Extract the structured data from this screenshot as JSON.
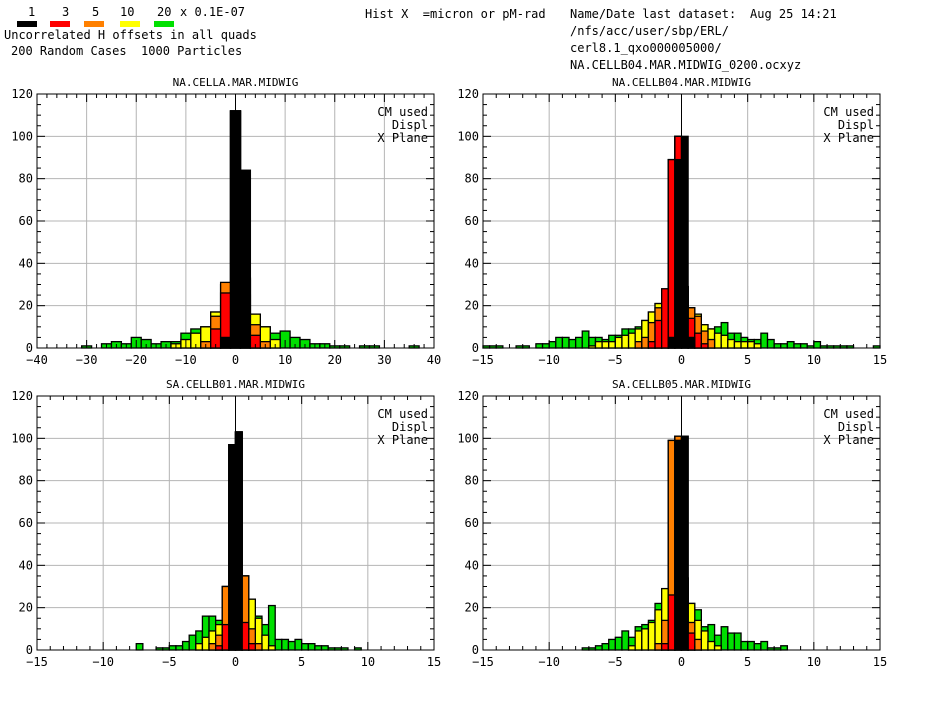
{
  "legend": {
    "levels": [
      {
        "label": "1",
        "color": "#000000"
      },
      {
        "label": "3",
        "color": "#ff0000"
      },
      {
        "label": "5",
        "color": "#ff8000"
      },
      {
        "label": "10",
        "color": "#ffff00"
      },
      {
        "label": "20",
        "color": "#00e000"
      }
    ],
    "unit": "x 0.1E-07"
  },
  "header": {
    "line1": "Uncorrelated H offsets in all quads",
    "line2": "200 Random Cases  1000 Particles",
    "hist_label": "Hist X  =micron or pM-rad",
    "dataset_label": "Name/Date last dataset:",
    "dataset_date": "Aug 25 14:21",
    "path1": "/nfs/acc/user/sbp/ERL/",
    "path2": "cerl8.1_qxo000005000/",
    "path3": "NA.CELLB04.MAR.MIDWIG_0200.ocxyz"
  },
  "chart_data": [
    {
      "type": "bar",
      "title": "NA.CELLA.MAR.MIDWIG",
      "annotations": [
        "CM used",
        "Displ",
        "X Plane"
      ],
      "xlim": [
        -40,
        40
      ],
      "ylim": [
        0,
        120
      ],
      "xticks": [
        -40,
        -30,
        -20,
        -10,
        0,
        10,
        20,
        30,
        40
      ],
      "yticks": [
        0,
        20,
        40,
        60,
        80,
        100,
        120
      ],
      "bin_width": 2,
      "series": [
        {
          "color": "#00e000",
          "x": [
            -30,
            -28,
            -26,
            -24,
            -22,
            -20,
            -18,
            -16,
            -14,
            -12,
            -10,
            -8,
            -6,
            -4,
            -2,
            0,
            2,
            4,
            6,
            8,
            10,
            12,
            14,
            16,
            18,
            20,
            22,
            24,
            26,
            28,
            30,
            32,
            34,
            36
          ],
          "values": [
            1,
            0,
            2,
            3,
            2,
            5,
            4,
            2,
            3,
            3,
            7,
            9,
            10,
            17,
            30,
            112,
            33,
            16,
            10,
            7,
            8,
            5,
            4,
            2,
            2,
            1,
            1,
            0,
            1,
            1,
            0,
            0,
            0,
            1
          ]
        },
        {
          "color": "#ffff00",
          "x": [
            -12,
            -10,
            -8,
            -6,
            -4,
            -2,
            0,
            2,
            4,
            6,
            8
          ],
          "values": [
            2,
            4,
            7,
            10,
            17,
            30,
            112,
            33,
            16,
            10,
            4
          ]
        },
        {
          "color": "#ff8000",
          "x": [
            -6,
            -4,
            -2,
            0,
            2,
            4,
            6
          ],
          "values": [
            3,
            15,
            31,
            112,
            32,
            11,
            3
          ]
        },
        {
          "color": "#ff0000",
          "x": [
            -4,
            -2,
            0,
            2,
            4
          ],
          "values": [
            9,
            26,
            112,
            25,
            6
          ]
        },
        {
          "color": "#000000",
          "x": [
            -2,
            0,
            2
          ],
          "values": [
            5,
            112,
            84
          ]
        }
      ]
    },
    {
      "type": "bar",
      "title": "NA.CELLB04.MAR.MIDWIG",
      "annotations": [
        "CM used",
        "Displ",
        "X Plane"
      ],
      "xlim": [
        -15,
        15
      ],
      "ylim": [
        0,
        120
      ],
      "xticks": [
        -15,
        -10,
        -5,
        0,
        5,
        10,
        15
      ],
      "yticks": [
        0,
        20,
        40,
        60,
        80,
        100,
        120
      ],
      "bin_width": 0.5,
      "series": [
        {
          "color": "#00e000",
          "x": [
            -14.75,
            -14.25,
            -13.75,
            -12.75,
            -12.25,
            -11.75,
            -11.25,
            -10.75,
            -10.25,
            -9.75,
            -9.25,
            -8.75,
            -8.25,
            -7.75,
            -7.25,
            -6.75,
            -6.25,
            -5.75,
            -5.25,
            -4.75,
            -4.25,
            -3.75,
            -3.25,
            -2.75,
            -2.25,
            -1.75,
            -1.25,
            -0.75,
            -0.25,
            0.25,
            0.75,
            1.25,
            1.75,
            2.25,
            2.75,
            3.25,
            3.75,
            4.25,
            4.75,
            5.25,
            5.75,
            6.25,
            6.75,
            7.25,
            7.75,
            8.25,
            8.75,
            9.25,
            9.75,
            10.25,
            10.75,
            11.25,
            11.75,
            12.25,
            12.75,
            14.75
          ],
          "values": [
            1,
            1,
            1,
            0,
            1,
            1,
            0,
            2,
            2,
            3,
            5,
            5,
            4,
            5,
            8,
            5,
            5,
            4,
            6,
            6,
            9,
            9,
            10,
            13,
            17,
            21,
            27,
            89,
            100,
            29,
            19,
            16,
            11,
            9,
            10,
            12,
            7,
            7,
            5,
            4,
            4,
            7,
            4,
            2,
            2,
            3,
            2,
            2,
            1,
            3,
            1,
            1,
            1,
            1,
            1,
            1
          ]
        },
        {
          "color": "#ffff00",
          "x": [
            -6.75,
            -6.25,
            -5.75,
            -5.25,
            -4.75,
            -4.25,
            -3.75,
            -3.25,
            -2.75,
            -2.25,
            -1.75,
            -1.25,
            -0.75,
            -0.25,
            0.25,
            0.75,
            1.25,
            1.75,
            2.25,
            2.75,
            3.25,
            3.75,
            4.25,
            4.75,
            5.25,
            5.75
          ],
          "values": [
            1,
            3,
            3,
            3,
            5,
            6,
            7,
            9,
            13,
            17,
            21,
            27,
            89,
            100,
            29,
            19,
            16,
            11,
            9,
            7,
            6,
            4,
            3,
            3,
            3,
            2
          ]
        },
        {
          "color": "#ff8000",
          "x": [
            -3.25,
            -2.75,
            -2.25,
            -1.75,
            -1.25,
            -0.75,
            -0.25,
            0.25,
            0.75,
            1.25,
            1.75,
            2.25
          ],
          "values": [
            3,
            5,
            12,
            19,
            26,
            89,
            100,
            29,
            19,
            15,
            8,
            4
          ]
        },
        {
          "color": "#ff0000",
          "x": [
            -2.25,
            -1.75,
            -1.25,
            -0.75,
            -0.25,
            0.25,
            0.75,
            1.25,
            1.75
          ],
          "values": [
            3,
            13,
            28,
            89,
            100,
            29,
            14,
            7,
            2
          ]
        },
        {
          "color": "#000000",
          "x": [
            -0.75,
            -0.25,
            0.25,
            0.75
          ],
          "values": [
            5,
            89,
            100,
            5
          ]
        }
      ]
    },
    {
      "type": "bar",
      "title": "SA.CELLB01.MAR.MIDWIG",
      "annotations": [
        "CM used",
        "Displ",
        "X Plane"
      ],
      "xlim": [
        -15,
        15
      ],
      "ylim": [
        0,
        120
      ],
      "xticks": [
        -15,
        -10,
        -5,
        0,
        5,
        10,
        15
      ],
      "yticks": [
        0,
        20,
        40,
        60,
        80,
        100,
        120
      ],
      "bin_width": 0.5,
      "series": [
        {
          "color": "#00e000",
          "x": [
            -7.25,
            -5.75,
            -5.25,
            -4.75,
            -4.25,
            -3.75,
            -3.25,
            -2.75,
            -2.25,
            -1.75,
            -1.25,
            -0.75,
            -0.25,
            0.25,
            0.75,
            1.25,
            1.75,
            2.25,
            2.75,
            3.25,
            3.75,
            4.25,
            4.75,
            5.25,
            5.75,
            6.25,
            6.75,
            7.25,
            7.75,
            8.25,
            8.75,
            9.25
          ],
          "values": [
            3,
            1,
            1,
            2,
            2,
            4,
            7,
            9,
            16,
            16,
            14,
            30,
            97,
            103,
            35,
            24,
            16,
            12,
            21,
            5,
            5,
            4,
            5,
            3,
            3,
            2,
            2,
            1,
            1,
            1,
            0,
            1
          ]
        },
        {
          "color": "#ffff00",
          "x": [
            -2.75,
            -2.25,
            -1.75,
            -1.25,
            -0.75,
            -0.25,
            0.25,
            0.75,
            1.25,
            1.75,
            2.25,
            2.75
          ],
          "values": [
            3,
            6,
            9,
            12,
            30,
            97,
            103,
            35,
            24,
            15,
            7,
            2
          ]
        },
        {
          "color": "#ff8000",
          "x": [
            -1.75,
            -1.25,
            -0.75,
            -0.25,
            0.25,
            0.75,
            1.25,
            1.75
          ],
          "values": [
            3,
            7,
            30,
            97,
            103,
            35,
            10,
            3
          ]
        },
        {
          "color": "#ff0000",
          "x": [
            -1.25,
            -0.75,
            -0.25,
            0.25,
            0.75,
            1.25
          ],
          "values": [
            2,
            12,
            97,
            103,
            13,
            3
          ]
        },
        {
          "color": "#000000",
          "x": [
            -0.25,
            0.25
          ],
          "values": [
            97,
            103
          ]
        }
      ]
    },
    {
      "type": "bar",
      "title": "SA.CELLB05.MAR.MIDWIG",
      "annotations": [
        "CM used",
        "Displ",
        "X Plane"
      ],
      "xlim": [
        -15,
        15
      ],
      "ylim": [
        0,
        120
      ],
      "xticks": [
        -15,
        -10,
        -5,
        0,
        5,
        10,
        15
      ],
      "yticks": [
        0,
        20,
        40,
        60,
        80,
        100,
        120
      ],
      "bin_width": 0.5,
      "series": [
        {
          "color": "#00e000",
          "x": [
            -7.25,
            -6.75,
            -6.25,
            -5.75,
            -5.25,
            -4.75,
            -4.25,
            -3.75,
            -3.25,
            -2.75,
            -2.25,
            -1.75,
            -1.25,
            -0.75,
            -0.25,
            0.25,
            0.75,
            1.25,
            1.75,
            2.25,
            2.75,
            3.25,
            3.75,
            4.25,
            4.75,
            5.25,
            5.75,
            6.25,
            6.75,
            7.25,
            7.75
          ],
          "values": [
            1,
            1,
            2,
            3,
            5,
            6,
            9,
            6,
            11,
            12,
            14,
            22,
            29,
            99,
            101,
            34,
            22,
            19,
            11,
            12,
            7,
            11,
            8,
            8,
            4,
            4,
            3,
            4,
            1,
            1,
            2
          ]
        },
        {
          "color": "#ffff00",
          "x": [
            -3.75,
            -3.25,
            -2.75,
            -2.25,
            -1.75,
            -1.25,
            -0.75,
            -0.25,
            0.25,
            0.75,
            1.25,
            1.75,
            2.25,
            2.75
          ],
          "values": [
            2,
            9,
            10,
            13,
            19,
            29,
            99,
            101,
            34,
            22,
            14,
            9,
            4,
            2
          ]
        },
        {
          "color": "#ff8000",
          "x": [
            -1.75,
            -1.25,
            -0.75,
            -0.25,
            0.25,
            0.75,
            1.25
          ],
          "values": [
            3,
            14,
            99,
            101,
            34,
            13,
            5
          ]
        },
        {
          "color": "#ff0000",
          "x": [
            -1.25,
            -0.75,
            -0.25,
            0.25,
            0.75
          ],
          "values": [
            3,
            26,
            99,
            101,
            8
          ]
        },
        {
          "color": "#000000",
          "x": [
            -0.25,
            0.25
          ],
          "values": [
            99,
            101
          ]
        }
      ]
    }
  ]
}
